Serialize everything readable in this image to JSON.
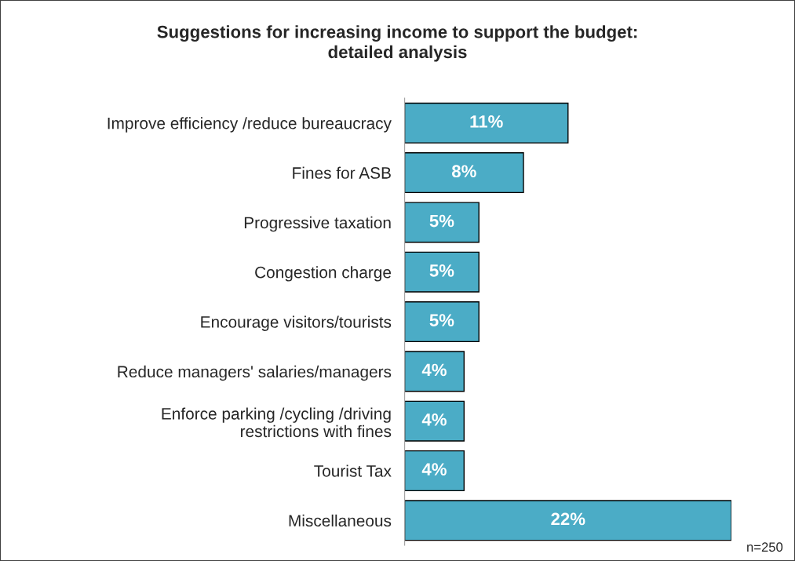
{
  "chart_data": {
    "type": "bar",
    "orientation": "horizontal",
    "title": "Suggestions for increasing income to support the budget:\ndetailed analysis",
    "categories": [
      "Improve efficiency /reduce bureaucracy",
      "Fines for ASB",
      "Progressive taxation",
      "Congestion charge",
      "Encourage visitors/tourists",
      "Reduce managers' salaries/managers",
      "Enforce parking /cycling /driving\nrestrictions with fines",
      "Tourist Tax",
      "Miscellaneous"
    ],
    "values": [
      11,
      8,
      5,
      5,
      5,
      4,
      4,
      4,
      22
    ],
    "value_labels": [
      "11%",
      "8%",
      "5%",
      "5%",
      "5%",
      "4%",
      "4%",
      "4%",
      "22%"
    ],
    "color": "#4bacc6",
    "grid": false,
    "legend": false,
    "annotations": [
      "n=250"
    ]
  }
}
